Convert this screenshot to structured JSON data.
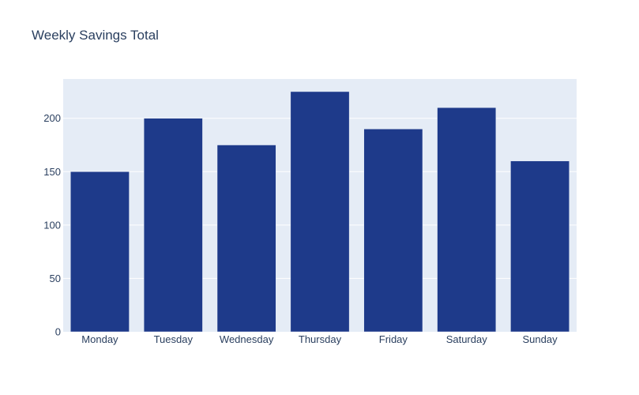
{
  "chart_data": {
    "type": "bar",
    "title": "Weekly Savings Total",
    "xlabel": "",
    "ylabel": "",
    "categories": [
      "Monday",
      "Tuesday",
      "Wednesday",
      "Thursday",
      "Friday",
      "Saturday",
      "Sunday"
    ],
    "values": [
      150,
      200,
      175,
      225,
      190,
      210,
      160
    ],
    "ylim": [
      0,
      236.8
    ],
    "yticks": [
      0,
      50,
      100,
      150,
      200
    ],
    "grid": true,
    "legend": "none",
    "colors": {
      "bar": "#1e3a8a",
      "plot_background": "#e5ecf6",
      "gridline": "#ffffff",
      "text": "#2a3f5f"
    }
  }
}
